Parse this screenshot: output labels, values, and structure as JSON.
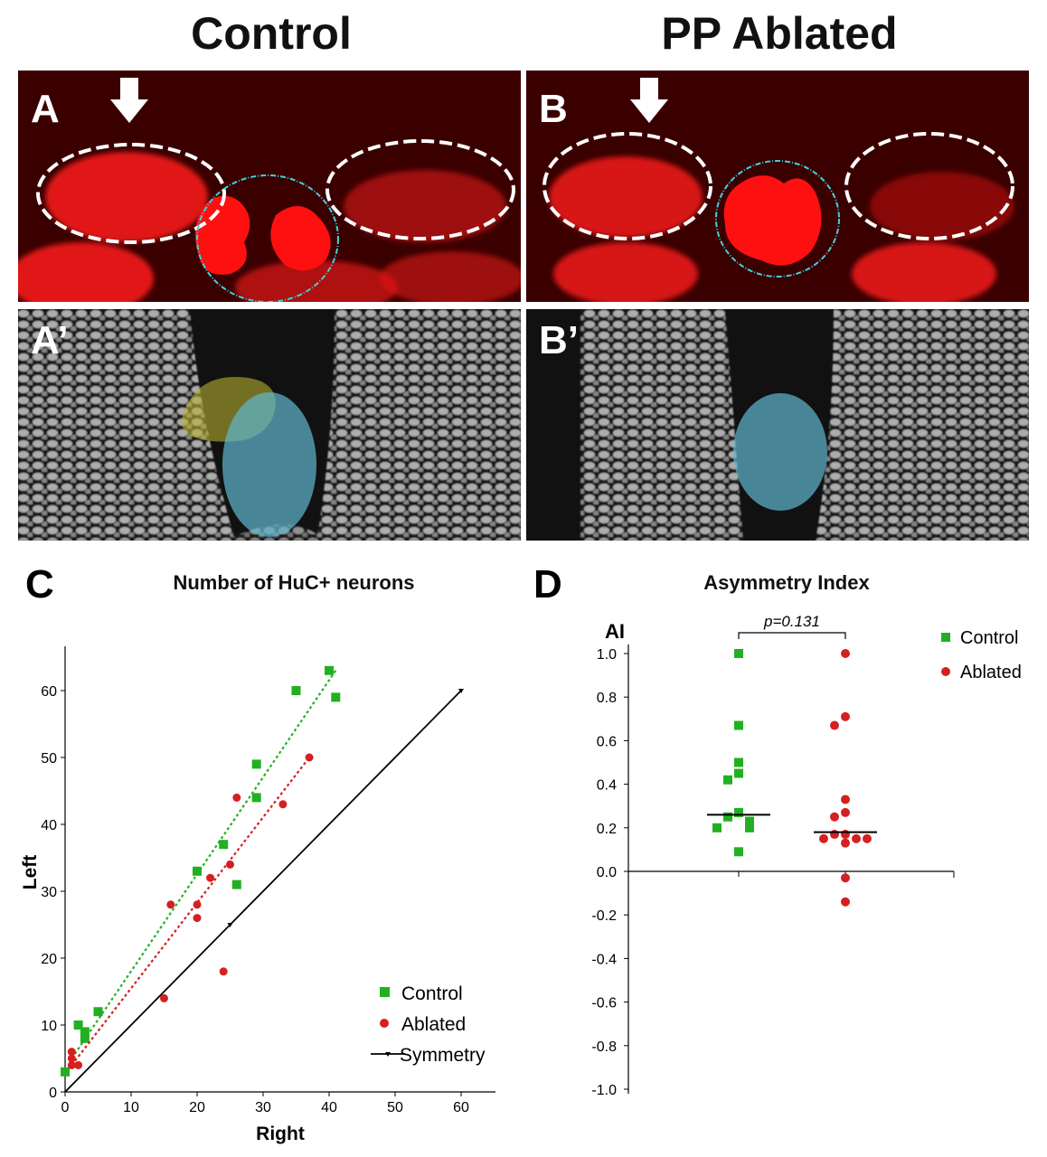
{
  "figure": {
    "col_titles": [
      "Control",
      "PP Ablated"
    ],
    "panel_labels": {
      "a": "A",
      "b": "B",
      "a2": "A’",
      "b2": "B’",
      "c": "C",
      "d": "D"
    }
  },
  "colors": {
    "control": "#22b022",
    "ablated": "#d42020",
    "symmetry": "#000000",
    "stain_red": "#ff1a1a",
    "habenula_outline": "#ffffff",
    "pineal_outline": "#40d0e0",
    "pineal_fill": "#5fb8d0",
    "parapineal_fill": "#b8b030"
  },
  "chart_data": [
    {
      "type": "scatter",
      "title": "Number of HuC+ neurons",
      "xlabel": "Right",
      "ylabel": "Left",
      "xlim": [
        0,
        65
      ],
      "ylim": [
        0,
        67
      ],
      "xticks": [
        0,
        10,
        20,
        30,
        40,
        50,
        60
      ],
      "yticks": [
        0,
        10,
        20,
        30,
        40,
        50,
        60
      ],
      "legend_position": "bottom-right",
      "legend": [
        "Control",
        "Ablated",
        "Symmetry"
      ],
      "series": [
        {
          "name": "Control",
          "marker": "square",
          "points": [
            [
              0,
              3
            ],
            [
              2,
              10
            ],
            [
              3,
              9
            ],
            [
              3,
              8
            ],
            [
              5,
              12
            ],
            [
              20,
              33
            ],
            [
              24,
              37
            ],
            [
              26,
              31
            ],
            [
              29,
              49
            ],
            [
              29,
              44
            ],
            [
              35,
              60
            ],
            [
              40,
              63
            ],
            [
              41,
              59
            ]
          ],
          "trend": [
            [
              1,
              5
            ],
            [
              41,
              63
            ]
          ]
        },
        {
          "name": "Ablated",
          "marker": "circle",
          "points": [
            [
              1,
              6
            ],
            [
              1,
              5
            ],
            [
              1,
              4
            ],
            [
              2,
              4
            ],
            [
              15,
              14
            ],
            [
              16,
              28
            ],
            [
              20,
              28
            ],
            [
              20,
              26
            ],
            [
              22,
              32
            ],
            [
              24,
              18
            ],
            [
              25,
              34
            ],
            [
              26,
              44
            ],
            [
              33,
              43
            ],
            [
              37,
              50
            ]
          ],
          "trend": [
            [
              1,
              4
            ],
            [
              37,
              50
            ]
          ]
        },
        {
          "name": "Symmetry",
          "marker": "line",
          "points": [
            [
              0,
              0
            ],
            [
              25,
              25
            ],
            [
              60,
              60
            ]
          ]
        }
      ]
    },
    {
      "type": "scatter",
      "title": "Asymmetry Index",
      "ylabel": "AI",
      "ylim": [
        -1.0,
        1.0
      ],
      "yticks": [
        "1.0",
        "0.8",
        "0.6",
        "0.4",
        "0.2",
        "0.0",
        "-0.2",
        "-0.4",
        "-0.6",
        "-0.8",
        "-1.0"
      ],
      "annotation": "p=0.131",
      "legend_position": "top-right",
      "legend": [
        "Control",
        "Ablated"
      ],
      "series": [
        {
          "name": "Control",
          "marker": "square",
          "values": [
            1.0,
            0.67,
            0.5,
            0.45,
            0.42,
            0.27,
            0.25,
            0.23,
            0.22,
            0.2,
            0.2,
            0.09
          ],
          "median": 0.26
        },
        {
          "name": "Ablated",
          "marker": "circle",
          "values": [
            1.0,
            0.71,
            0.67,
            0.33,
            0.27,
            0.25,
            0.17,
            0.17,
            0.15,
            0.15,
            0.15,
            0.13,
            -0.03,
            -0.14
          ],
          "median": 0.18
        }
      ]
    }
  ]
}
